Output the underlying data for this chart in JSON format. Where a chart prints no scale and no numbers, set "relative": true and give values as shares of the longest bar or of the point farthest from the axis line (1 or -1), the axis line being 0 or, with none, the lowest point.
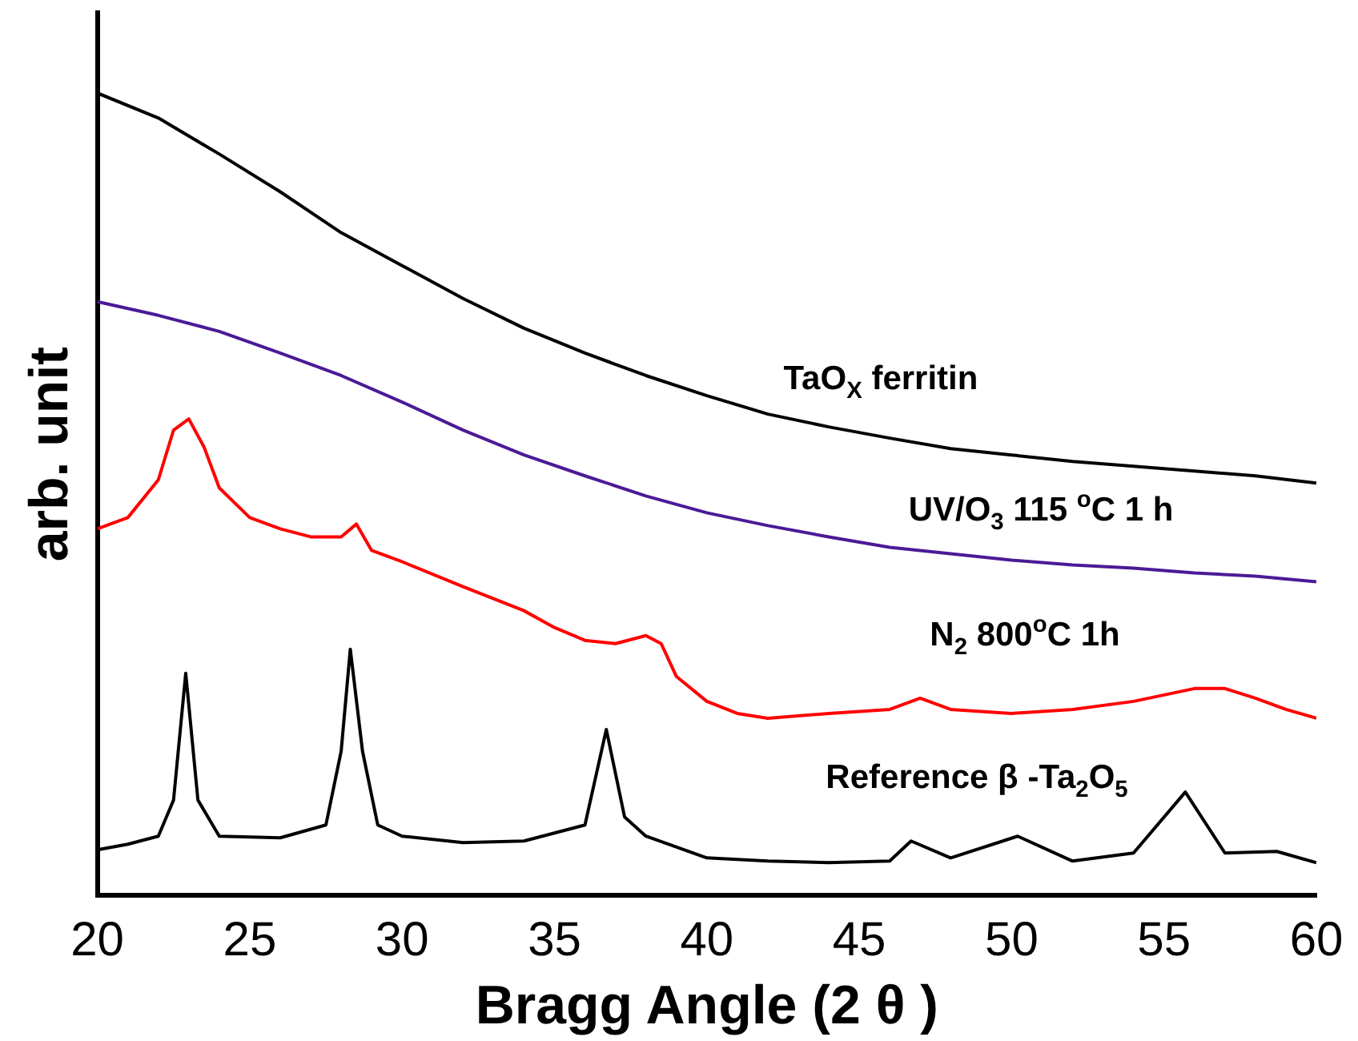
{
  "chart_data": {
    "type": "line",
    "xlabel": "Bragg Angle (2 θ )",
    "ylabel": "arb. unit",
    "relative": true,
    "xlim": [
      20,
      60
    ],
    "xticks": [
      20,
      25,
      30,
      35,
      40,
      45,
      50,
      55,
      60
    ],
    "grid": false,
    "legend": false,
    "marker": "none",
    "line_style": "solid",
    "series": [
      {
        "name": "TaO$_{X}$ ferritin",
        "color": "#000000",
        "x": [
          20,
          22,
          24,
          26,
          28,
          30,
          32,
          34,
          36,
          38,
          40,
          42,
          44,
          46,
          48,
          50,
          52,
          54,
          56,
          58,
          60
        ],
        "values": [
          1.0,
          0.969,
          0.924,
          0.877,
          0.826,
          0.785,
          0.744,
          0.707,
          0.676,
          0.648,
          0.623,
          0.6,
          0.584,
          0.57,
          0.557,
          0.549,
          0.541,
          0.535,
          0.529,
          0.523,
          0.514
        ]
      },
      {
        "name": "UV/O$_{3}$ 115 $^{o}$C 1 h",
        "color": "#4b1a96",
        "x": [
          20,
          22,
          24,
          26,
          28,
          30,
          32,
          34,
          36,
          38,
          40,
          42,
          44,
          46,
          48,
          50,
          52,
          54,
          56,
          58,
          60
        ],
        "values": [
          0.74,
          0.723,
          0.703,
          0.676,
          0.648,
          0.615,
          0.58,
          0.549,
          0.523,
          0.498,
          0.477,
          0.461,
          0.447,
          0.434,
          0.426,
          0.418,
          0.412,
          0.408,
          0.402,
          0.398,
          0.391
        ]
      },
      {
        "name": "N$_{2}$ 800$^{o}$C 1h",
        "color": "#ff0000",
        "x": [
          20,
          21,
          22,
          22.5,
          23,
          23.5,
          24,
          25,
          26,
          27,
          28,
          28.5,
          29,
          30,
          32,
          34,
          35,
          36,
          37,
          38,
          38.5,
          39,
          40,
          41,
          42,
          44,
          46,
          47,
          48,
          50,
          52,
          54,
          56,
          57,
          58,
          59,
          60
        ],
        "values": [
          0.457,
          0.471,
          0.518,
          0.58,
          0.594,
          0.559,
          0.508,
          0.471,
          0.457,
          0.447,
          0.447,
          0.463,
          0.43,
          0.416,
          0.385,
          0.355,
          0.334,
          0.318,
          0.314,
          0.324,
          0.314,
          0.273,
          0.242,
          0.227,
          0.221,
          0.227,
          0.232,
          0.246,
          0.232,
          0.227,
          0.232,
          0.242,
          0.258,
          0.258,
          0.246,
          0.232,
          0.221
        ]
      },
      {
        "name": "Reference β -Ta$_{2}$O$_{5}$",
        "color": "#000000",
        "x": [
          20,
          21,
          22,
          22.5,
          22.9,
          23.3,
          24,
          26,
          27.5,
          28,
          28.3,
          28.7,
          29.2,
          30,
          32,
          34,
          36,
          36.7,
          37.3,
          38,
          40,
          42,
          44,
          46,
          46.7,
          48,
          50.2,
          52,
          54,
          55.7,
          57,
          58.7,
          60
        ],
        "values": [
          0.057,
          0.064,
          0.074,
          0.119,
          0.277,
          0.119,
          0.074,
          0.072,
          0.088,
          0.18,
          0.307,
          0.18,
          0.088,
          0.074,
          0.066,
          0.068,
          0.088,
          0.207,
          0.098,
          0.074,
          0.047,
          0.043,
          0.041,
          0.043,
          0.068,
          0.047,
          0.074,
          0.043,
          0.053,
          0.129,
          0.053,
          0.055,
          0.041
        ]
      }
    ]
  }
}
